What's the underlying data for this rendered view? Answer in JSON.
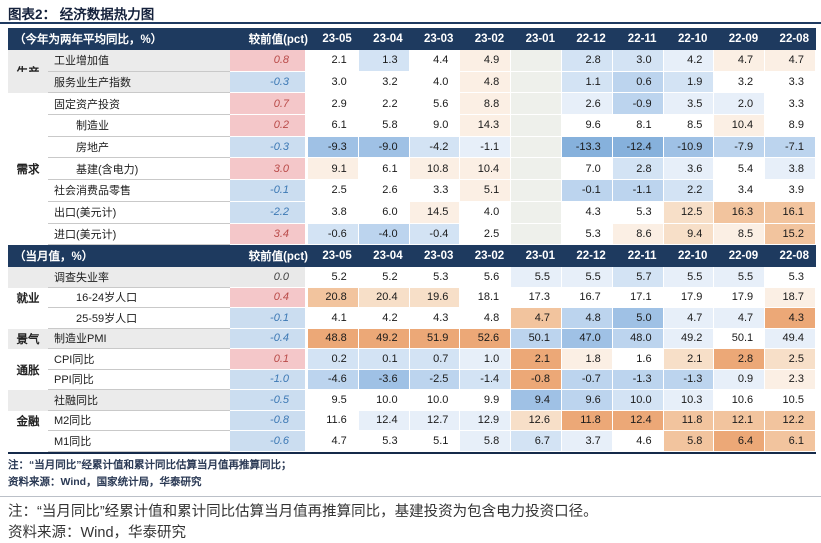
{
  "title": "图表2： 经济数据热力图",
  "colors": {
    "header_navy": "#1E3A5F",
    "prev_header_chip": "#4C71A0",
    "prev_pos_bg": "#F4C7C9",
    "prev_pos_text": "#B94A48",
    "prev_neg_bg": "#CBDDF0",
    "prev_neg_text": "#3C78B4",
    "prev_zero_bg": "#E9E9E9",
    "label_band_gray": "#EBEBEB",
    "cell_palette": {
      "b3": "#86B1DC",
      "b2": "#9FC1E5",
      "b1": "#BCD4EE",
      "b0": "#D3E3F4",
      "vb": "#E7EFF9",
      "w": "#FFFFFF",
      "vo": "#FBEFE4",
      "o0": "#F7DFC8",
      "o1": "#F2C49E",
      "o2": "#ECA877",
      "g": "#EEF0EB"
    }
  },
  "chart_data": {
    "type": "heatmap",
    "title": "经济数据热力图",
    "section1_header": "（今年为两年平均同比，%）",
    "section2_header": "（当月值，%）",
    "prev_header": "较前值(pct)",
    "columns": [
      "23-05",
      "23-04",
      "23-03",
      "23-02",
      "23-01",
      "22-12",
      "22-11",
      "22-10",
      "22-09",
      "22-08"
    ],
    "rows": [
      {
        "section": 1,
        "group": "生产",
        "straddle": true,
        "label": "工业增加值",
        "indent": false,
        "gray": true,
        "prev": "0.8",
        "prev_type": "pos",
        "values": [
          "2.1",
          "1.3",
          "4.4",
          "4.9",
          "",
          "2.8",
          "3.0",
          "4.2",
          "4.7",
          "4.7"
        ],
        "cells": [
          "w",
          "b0",
          "w",
          "vo",
          "g",
          "b0",
          "b0",
          "vb",
          "vo",
          "vo"
        ]
      },
      {
        "section": 1,
        "group": "",
        "straddle": false,
        "label": "服务业生产指数",
        "indent": false,
        "gray": true,
        "prev": "-0.3",
        "prev_type": "neg",
        "values": [
          "3.0",
          "3.2",
          "4.0",
          "4.8",
          "",
          "1.1",
          "0.6",
          "1.9",
          "3.2",
          "3.3"
        ],
        "cells": [
          "w",
          "w",
          "w",
          "vo",
          "g",
          "b0",
          "b1",
          "b0",
          "w",
          "w"
        ]
      },
      {
        "section": 1,
        "group": "",
        "straddle": false,
        "label": "固定资产投资",
        "indent": false,
        "gray": false,
        "prev": "0.7",
        "prev_type": "pos",
        "values": [
          "2.9",
          "2.2",
          "5.6",
          "8.8",
          "",
          "2.6",
          "-0.9",
          "3.5",
          "2.0",
          "3.3"
        ],
        "cells": [
          "w",
          "w",
          "w",
          "vo",
          "g",
          "vb",
          "b1",
          "vb",
          "vb",
          "w"
        ]
      },
      {
        "section": 1,
        "group": "",
        "straddle": false,
        "label": "制造业",
        "indent": true,
        "gray": false,
        "prev": "0.2",
        "prev_type": "pos",
        "values": [
          "6.1",
          "5.8",
          "9.0",
          "14.3",
          "",
          "9.6",
          "8.1",
          "8.5",
          "10.4",
          "8.9"
        ],
        "cells": [
          "w",
          "w",
          "w",
          "vo",
          "g",
          "w",
          "w",
          "w",
          "vo",
          "w"
        ]
      },
      {
        "section": 1,
        "group": "",
        "straddle": false,
        "label": "房地产",
        "indent": true,
        "gray": false,
        "prev": "-0.3",
        "prev_type": "neg",
        "values": [
          "-9.3",
          "-9.0",
          "-4.2",
          "-1.1",
          "",
          "-13.3",
          "-12.4",
          "-10.9",
          "-7.9",
          "-7.1"
        ],
        "cells": [
          "b2",
          "b2",
          "b0",
          "vb",
          "g",
          "b3",
          "b3",
          "b2",
          "b1",
          "b1"
        ]
      },
      {
        "section": 1,
        "group": "需求",
        "straddle": false,
        "label": "基建(含电力)",
        "indent": true,
        "gray": false,
        "prev": "3.0",
        "prev_type": "pos",
        "values": [
          "9.1",
          "6.1",
          "10.8",
          "10.4",
          "",
          "7.0",
          "2.8",
          "3.6",
          "5.4",
          "3.8"
        ],
        "cells": [
          "vo",
          "w",
          "vo",
          "vo",
          "g",
          "w",
          "b0",
          "vb",
          "w",
          "vb"
        ]
      },
      {
        "section": 1,
        "group": "",
        "straddle": false,
        "label": "社会消费品零售",
        "indent": false,
        "gray": false,
        "prev": "-0.1",
        "prev_type": "neg",
        "values": [
          "2.5",
          "2.6",
          "3.3",
          "5.1",
          "",
          "-0.1",
          "-1.1",
          "2.2",
          "3.4",
          "3.9"
        ],
        "cells": [
          "w",
          "w",
          "w",
          "vo",
          "g",
          "b1",
          "b1",
          "b0",
          "w",
          "w"
        ]
      },
      {
        "section": 1,
        "group": "",
        "straddle": false,
        "label": "出口(美元计)",
        "indent": false,
        "gray": false,
        "prev": "-2.2",
        "prev_type": "neg",
        "values": [
          "3.8",
          "6.0",
          "14.5",
          "4.0",
          "",
          "4.3",
          "5.3",
          "12.5",
          "16.3",
          "16.1"
        ],
        "cells": [
          "w",
          "w",
          "vo",
          "w",
          "g",
          "w",
          "w",
          "o0",
          "o1",
          "o1"
        ]
      },
      {
        "section": 1,
        "group": "",
        "straddle": false,
        "label": "进口(美元计)",
        "indent": false,
        "gray": false,
        "prev": "3.4",
        "prev_type": "pos",
        "values": [
          "-0.6",
          "-4.0",
          "-0.4",
          "2.5",
          "",
          "5.3",
          "8.6",
          "9.4",
          "8.5",
          "15.2"
        ],
        "cells": [
          "b0",
          "b1",
          "b0",
          "w",
          "g",
          "w",
          "vo",
          "o0",
          "vo",
          "o1"
        ]
      },
      {
        "section": 2,
        "group": "",
        "straddle": false,
        "label": "调查失业率",
        "indent": false,
        "gray": true,
        "prev": "0.0",
        "prev_type": "zero",
        "values": [
          "5.2",
          "5.2",
          "5.3",
          "5.6",
          "5.5",
          "5.5",
          "5.7",
          "5.5",
          "5.5",
          "5.3"
        ],
        "cells": [
          "w",
          "w",
          "w",
          "w",
          "vb",
          "vb",
          "b0",
          "vb",
          "vb",
          "w"
        ]
      },
      {
        "section": 2,
        "group": "就业",
        "straddle": false,
        "label": "16-24岁人口",
        "indent": true,
        "gray": false,
        "prev": "0.4",
        "prev_type": "pos",
        "values": [
          "20.8",
          "20.4",
          "19.6",
          "18.1",
          "17.3",
          "16.7",
          "17.1",
          "17.9",
          "17.9",
          "18.7"
        ],
        "cells": [
          "o1",
          "o0",
          "o0",
          "w",
          "w",
          "w",
          "w",
          "w",
          "w",
          "vo"
        ]
      },
      {
        "section": 2,
        "group": "",
        "straddle": false,
        "label": "25-59岁人口",
        "indent": true,
        "gray": false,
        "prev": "-0.1",
        "prev_type": "neg",
        "values": [
          "4.1",
          "4.2",
          "4.3",
          "4.8",
          "4.7",
          "4.8",
          "5.0",
          "4.7",
          "4.7",
          "4.3"
        ],
        "cells": [
          "w",
          "w",
          "w",
          "w",
          "o1",
          "b1",
          "b2",
          "vb",
          "vb",
          "o2"
        ]
      },
      {
        "section": 2,
        "group": "景气",
        "straddle": false,
        "label": "制造业PMI",
        "indent": false,
        "gray": true,
        "prev": "-0.4",
        "prev_type": "neg",
        "values": [
          "48.8",
          "49.2",
          "51.9",
          "52.6",
          "50.1",
          "47.0",
          "48.0",
          "49.2",
          "50.1",
          "49.4"
        ],
        "cells": [
          "o2",
          "o2",
          "o2",
          "o2",
          "b1",
          "b2",
          "b1",
          "vb",
          "w",
          "vb"
        ]
      },
      {
        "section": 2,
        "group": "通胀",
        "straddle": true,
        "label": "CPI同比",
        "indent": false,
        "gray": false,
        "prev": "0.1",
        "prev_type": "pos",
        "values": [
          "0.2",
          "0.1",
          "0.7",
          "1.0",
          "2.1",
          "1.8",
          "1.6",
          "2.1",
          "2.8",
          "2.5"
        ],
        "cells": [
          "b0",
          "b0",
          "b0",
          "vb",
          "o2",
          "vo",
          "w",
          "o0",
          "o2",
          "o0"
        ]
      },
      {
        "section": 2,
        "group": "",
        "straddle": false,
        "label": "PPI同比",
        "indent": false,
        "gray": false,
        "prev": "-1.0",
        "prev_type": "neg",
        "values": [
          "-4.6",
          "-3.6",
          "-2.5",
          "-1.4",
          "-0.8",
          "-0.7",
          "-1.3",
          "-1.3",
          "0.9",
          "2.3"
        ],
        "cells": [
          "b1",
          "b2",
          "b1",
          "b0",
          "o2",
          "b1",
          "b1",
          "b1",
          "vb",
          "vo"
        ]
      },
      {
        "section": 2,
        "group": "",
        "straddle": false,
        "label": "社融同比",
        "indent": false,
        "gray": true,
        "prev": "-0.5",
        "prev_type": "neg",
        "values": [
          "9.5",
          "10.0",
          "10.0",
          "9.9",
          "9.4",
          "9.6",
          "10.0",
          "10.3",
          "10.6",
          "10.5"
        ],
        "cells": [
          "w",
          "w",
          "w",
          "w",
          "b2",
          "b1",
          "b0",
          "vb",
          "w",
          "w"
        ]
      },
      {
        "section": 2,
        "group": "金融",
        "straddle": false,
        "label": "M2同比",
        "indent": false,
        "gray": false,
        "prev": "-0.8",
        "prev_type": "neg",
        "values": [
          "11.6",
          "12.4",
          "12.7",
          "12.9",
          "12.6",
          "11.8",
          "12.4",
          "11.8",
          "12.1",
          "12.2"
        ],
        "cells": [
          "w",
          "vb",
          "vb",
          "vb",
          "o0",
          "o2",
          "o2",
          "o1",
          "o1",
          "o1"
        ]
      },
      {
        "section": 2,
        "group": "",
        "straddle": false,
        "label": "M1同比",
        "indent": false,
        "gray": false,
        "prev": "-0.6",
        "prev_type": "neg",
        "values": [
          "4.7",
          "5.3",
          "5.1",
          "5.8",
          "6.7",
          "3.7",
          "4.6",
          "5.8",
          "6.4",
          "6.1"
        ],
        "cells": [
          "w",
          "w",
          "w",
          "vb",
          "b0",
          "vb",
          "w",
          "o1",
          "o2",
          "o1"
        ]
      }
    ]
  },
  "notes_small": {
    "line1": "注：“当月同比”经累计值和累计同比估算当月值再推算同比；",
    "line2": "资料来源：Wind，国家统计局，华泰研究"
  },
  "notes_big": {
    "line1": "注：“当月同比”经累计值和累计同比估算当月值再推算同比，基建投资为包含电力投资口径。",
    "line2": "资料来源：Wind，华泰研究"
  }
}
